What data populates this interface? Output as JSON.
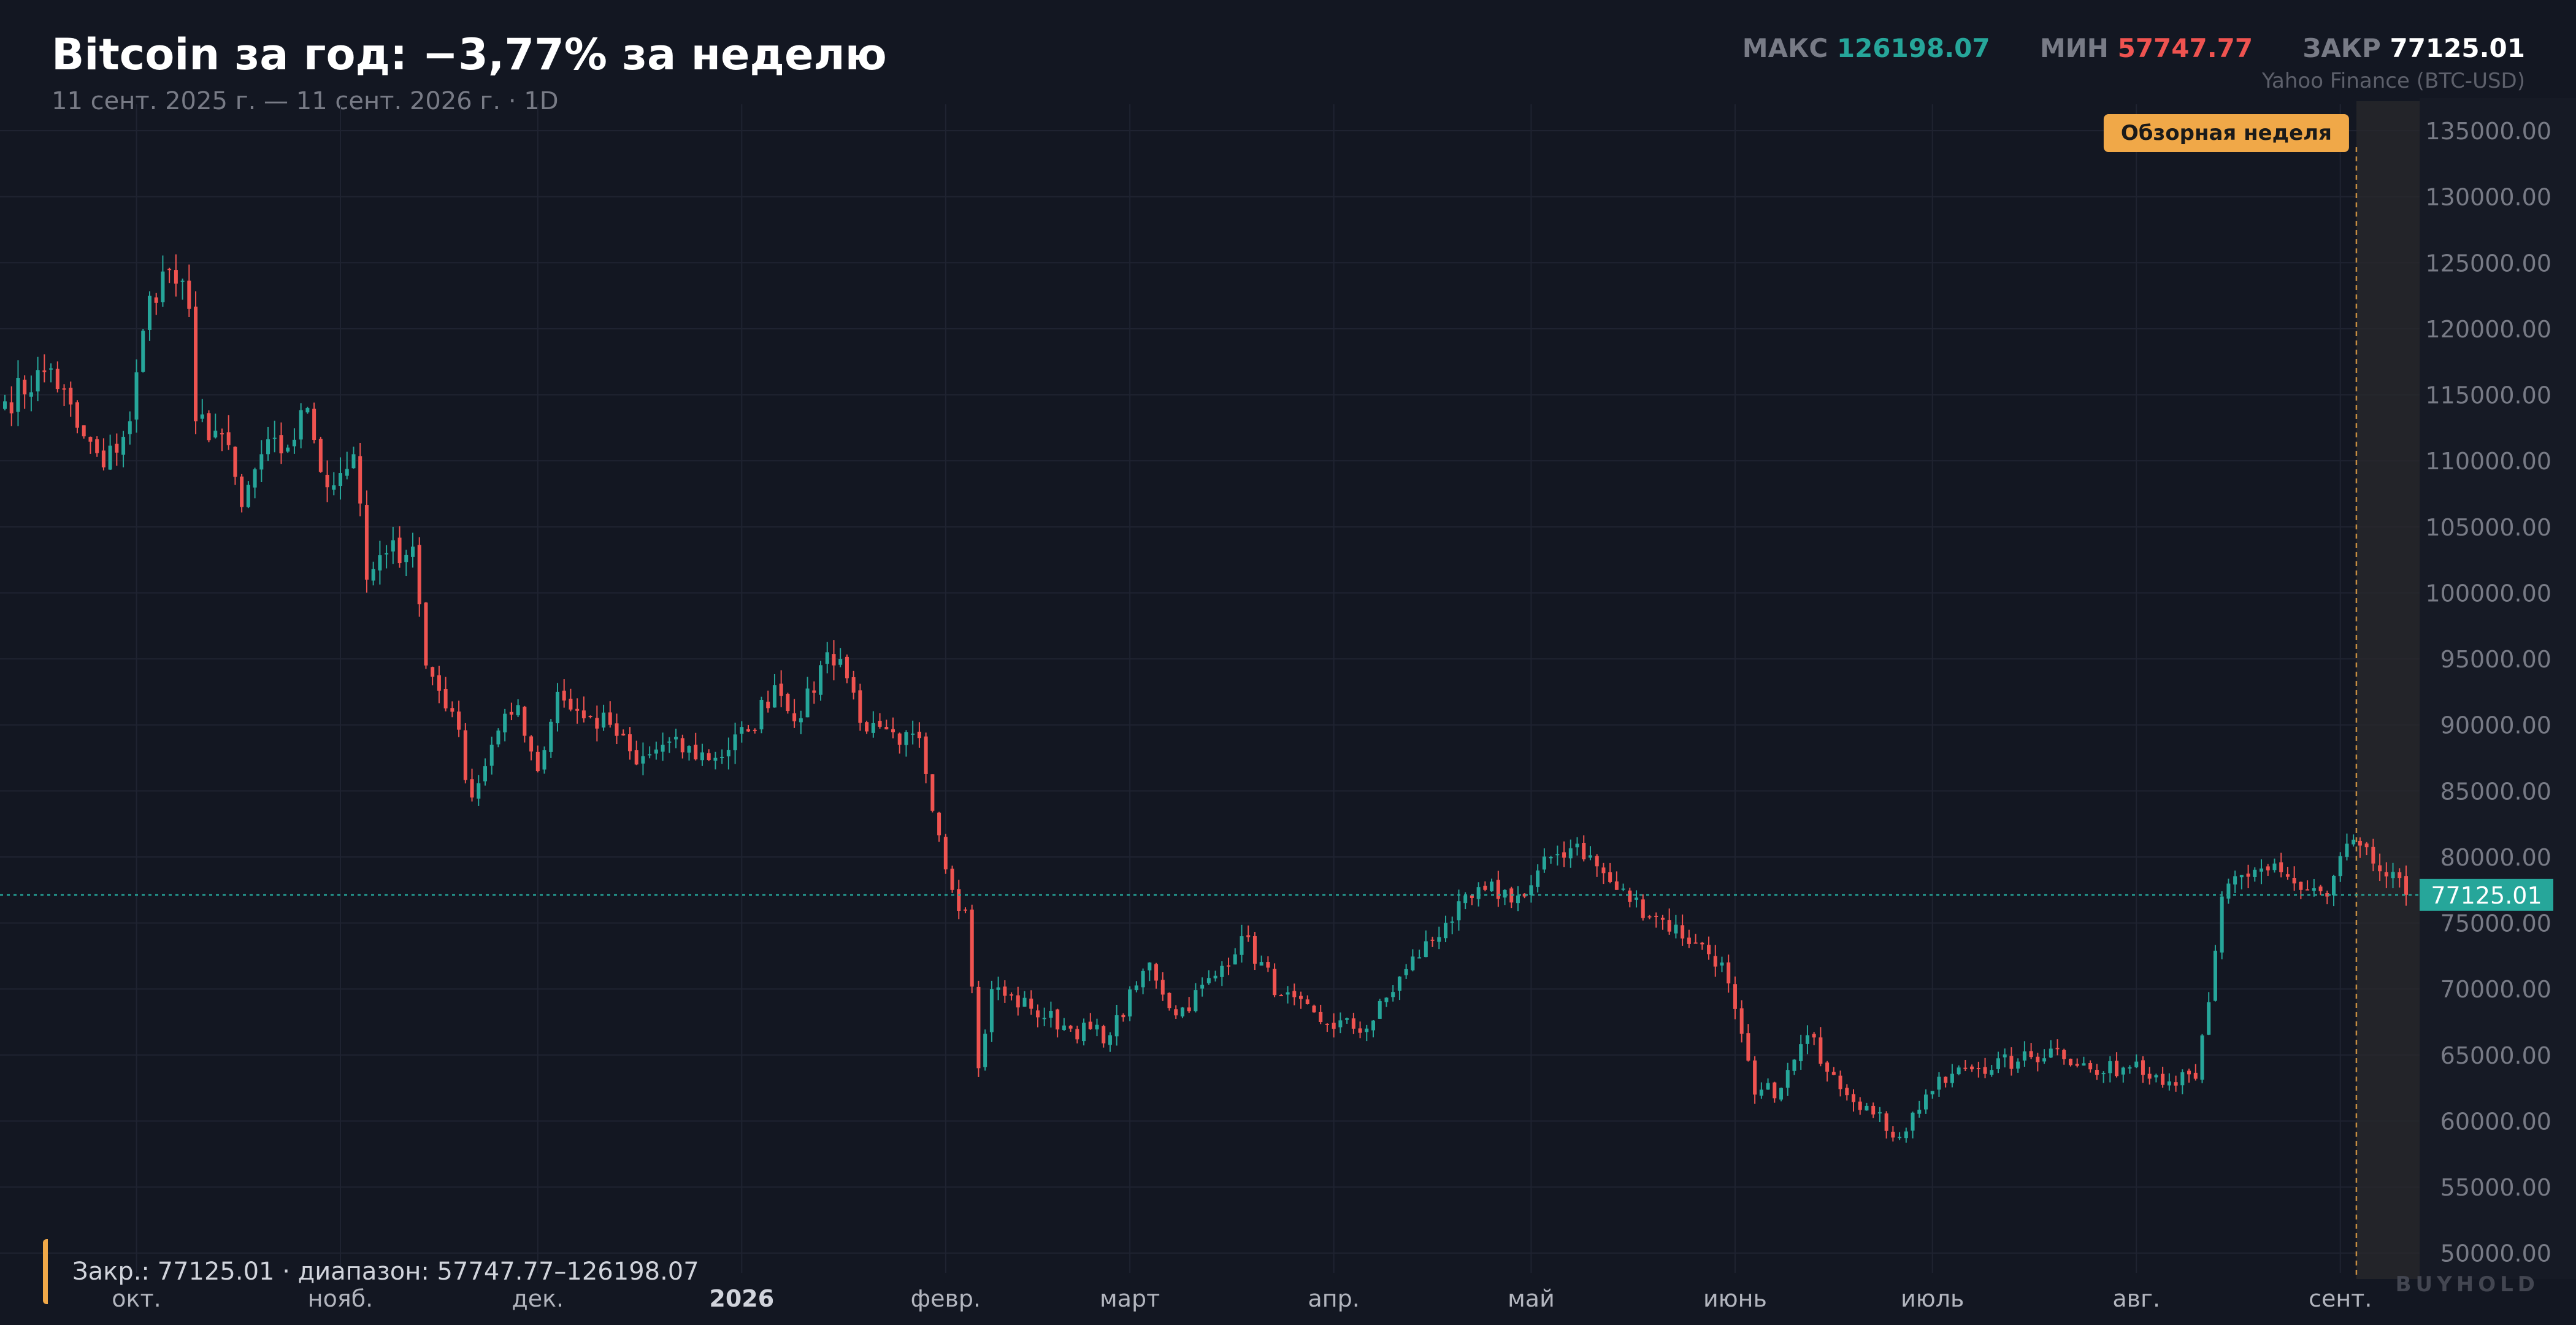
{
  "header": {
    "title": "Bitcoin за год: −3,77% за неделю",
    "subtitle": "11 сент. 2025 г. — 11 сент. 2026 г. · 1D",
    "source": "Yahoo Finance (BTC-USD)"
  },
  "stats": {
    "max_label": "МАКС",
    "max_value": "126198.07",
    "min_label": "МИН",
    "min_value": "57747.77",
    "close_label": "ЗАКР",
    "close_value": "77125.01"
  },
  "footer": {
    "note": "Закр.: 77125.01 · диапазон: 57747.77–126198.07",
    "brand": "BUYHOLD"
  },
  "colors": {
    "up": "#26a69a",
    "down": "#ef5350",
    "accent": "#f0a848",
    "background": "#131722",
    "grid": "#1f2331"
  },
  "chart_data": {
    "type": "candlestick",
    "title": "Bitcoin за год: −3,77% за неделю",
    "ylim": [
      48500,
      137000
    ],
    "y_ticks": [
      50000,
      55000,
      60000,
      65000,
      70000,
      75000,
      80000,
      85000,
      90000,
      95000,
      100000,
      105000,
      110000,
      115000,
      120000,
      125000,
      130000,
      135000
    ],
    "y_tick_labels": [
      "50000.00",
      "55000.00",
      "60000.00",
      "65000.00",
      "70000.00",
      "75000.00",
      "80000.00",
      "85000.00",
      "90000.00",
      "95000.00",
      "100000.00",
      "105000.00",
      "110000.00",
      "115000.00",
      "120000.00",
      "125000.00",
      "130000.00",
      "135000.00"
    ],
    "x_ticks": [
      {
        "date": "2025-10-01",
        "label": "окт.",
        "bold": false
      },
      {
        "date": "2025-11-01",
        "label": "нояб.",
        "bold": false
      },
      {
        "date": "2025-12-01",
        "label": "дек.",
        "bold": false
      },
      {
        "date": "2026-01-01",
        "label": "2026",
        "bold": true
      },
      {
        "date": "2026-02-01",
        "label": "февр.",
        "bold": false
      },
      {
        "date": "2026-03-01",
        "label": "март",
        "bold": false
      },
      {
        "date": "2026-04-01",
        "label": "апр.",
        "bold": false
      },
      {
        "date": "2026-05-01",
        "label": "май",
        "bold": false
      },
      {
        "date": "2026-06-01",
        "label": "июнь",
        "bold": false
      },
      {
        "date": "2026-07-01",
        "label": "июль",
        "bold": false
      },
      {
        "date": "2026-08-01",
        "label": "авг.",
        "bold": false
      },
      {
        "date": "2026-09-01",
        "label": "сент.",
        "bold": false
      }
    ],
    "x_range": [
      "2025-09-11",
      "2026-09-11"
    ],
    "last_close": 77125.01,
    "last_close_label": "77125.01",
    "highlight": {
      "label": "Обзорная неделя",
      "start": "2026-09-04",
      "end": "2026-09-11"
    },
    "close_keypoints": [
      [
        "2025-09-11",
        114500
      ],
      [
        "2025-09-18",
        117000
      ],
      [
        "2025-09-22",
        112500
      ],
      [
        "2025-09-26",
        109500
      ],
      [
        "2025-09-30",
        113000
      ],
      [
        "2025-10-03",
        122500
      ],
      [
        "2025-10-06",
        124500
      ],
      [
        "2025-10-09",
        121500
      ],
      [
        "2025-10-10",
        113000
      ],
      [
        "2025-10-14",
        112000
      ],
      [
        "2025-10-17",
        106500
      ],
      [
        "2025-10-20",
        110500
      ],
      [
        "2025-10-24",
        111000
      ],
      [
        "2025-10-27",
        114000
      ],
      [
        "2025-10-30",
        108000
      ],
      [
        "2025-11-03",
        110500
      ],
      [
        "2025-11-05",
        101000
      ],
      [
        "2025-11-08",
        103000
      ],
      [
        "2025-11-12",
        103500
      ],
      [
        "2025-11-14",
        94500
      ],
      [
        "2025-11-18",
        91000
      ],
      [
        "2025-11-21",
        84500
      ],
      [
        "2025-11-24",
        88500
      ],
      [
        "2025-11-28",
        91500
      ],
      [
        "2025-12-01",
        86500
      ],
      [
        "2025-12-04",
        92500
      ],
      [
        "2025-12-08",
        90500
      ],
      [
        "2025-12-12",
        90000
      ],
      [
        "2025-12-16",
        87000
      ],
      [
        "2025-12-20",
        88500
      ],
      [
        "2025-12-28",
        87500
      ],
      [
        "2026-01-02",
        89500
      ],
      [
        "2026-01-06",
        93000
      ],
      [
        "2026-01-10",
        90500
      ],
      [
        "2026-01-14",
        95500
      ],
      [
        "2026-01-16",
        95000
      ],
      [
        "2026-01-20",
        89500
      ],
      [
        "2026-01-25",
        88500
      ],
      [
        "2026-01-28",
        89000
      ],
      [
        "2026-02-02",
        77500
      ],
      [
        "2026-02-04",
        76000
      ],
      [
        "2026-02-06",
        64000
      ],
      [
        "2026-02-08",
        70000
      ],
      [
        "2026-02-14",
        68500
      ],
      [
        "2026-02-20",
        67000
      ],
      [
        "2026-02-26",
        66500
      ],
      [
        "2026-03-04",
        72000
      ],
      [
        "2026-03-08",
        68000
      ],
      [
        "2026-03-14",
        71000
      ],
      [
        "2026-03-18",
        74000
      ],
      [
        "2026-03-24",
        69500
      ],
      [
        "2026-03-30",
        67500
      ],
      [
        "2026-04-06",
        67000
      ],
      [
        "2026-04-12",
        71500
      ],
      [
        "2026-04-18",
        75000
      ],
      [
        "2026-04-24",
        77500
      ],
      [
        "2026-04-30",
        77000
      ],
      [
        "2026-05-04",
        80000
      ],
      [
        "2026-05-08",
        81000
      ],
      [
        "2026-05-14",
        77500
      ],
      [
        "2026-05-20",
        75500
      ],
      [
        "2026-05-26",
        73500
      ],
      [
        "2026-05-30",
        72000
      ],
      [
        "2026-06-04",
        62000
      ],
      [
        "2026-06-08",
        62500
      ],
      [
        "2026-06-12",
        66500
      ],
      [
        "2026-06-16",
        63500
      ],
      [
        "2026-06-22",
        60500
      ],
      [
        "2026-06-26",
        58800
      ],
      [
        "2026-06-30",
        62000
      ],
      [
        "2026-07-06",
        64000
      ],
      [
        "2026-07-14",
        64500
      ],
      [
        "2026-07-20",
        65500
      ],
      [
        "2026-07-26",
        63500
      ],
      [
        "2026-08-01",
        64500
      ],
      [
        "2026-08-06",
        63000
      ],
      [
        "2026-08-10",
        63200
      ],
      [
        "2026-08-12",
        69000
      ],
      [
        "2026-08-14",
        77000
      ],
      [
        "2026-08-18",
        78500
      ],
      [
        "2026-08-22",
        79500
      ],
      [
        "2026-08-26",
        77500
      ],
      [
        "2026-08-30",
        77000
      ],
      [
        "2026-09-02",
        81000
      ],
      [
        "2026-09-06",
        79500
      ],
      [
        "2026-09-11",
        77125.01
      ]
    ],
    "extremes": {
      "max": 126198.07,
      "min": 57747.77
    }
  }
}
